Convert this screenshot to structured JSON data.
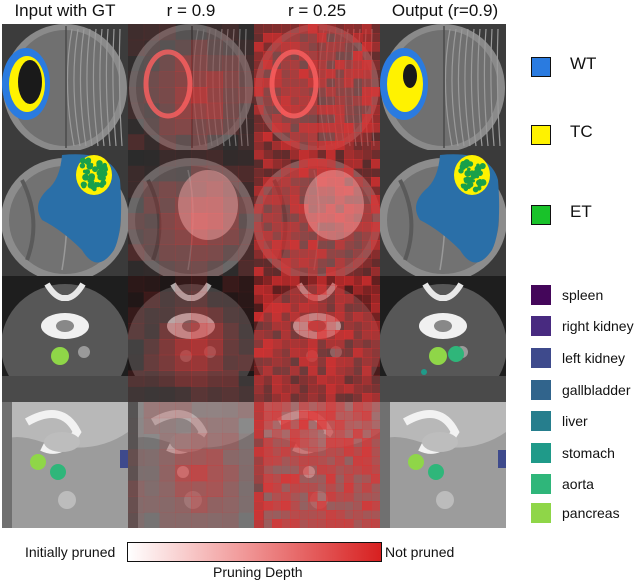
{
  "columns": [
    "Input with GT",
    "r = 0.9",
    "r = 0.25",
    "Output (r=0.9)"
  ],
  "tumor_legend": [
    {
      "label": "WT",
      "color": "#2a7be0"
    },
    {
      "label": "TC",
      "color": "#fff200"
    },
    {
      "label": "ET",
      "color": "#19c22a"
    }
  ],
  "organ_legend": [
    {
      "label": "spleen",
      "color": "#44065a"
    },
    {
      "label": "right kidney",
      "color": "#482a80"
    },
    {
      "label": "left kidney",
      "color": "#3e4a8c"
    },
    {
      "label": "gallbladder",
      "color": "#31648c"
    },
    {
      "label": "liver",
      "color": "#267e8d"
    },
    {
      "label": "stomach",
      "color": "#1f9a89"
    },
    {
      "label": "aorta",
      "color": "#2fb67a"
    },
    {
      "label": "pancreas",
      "color": "#8fd648"
    }
  ],
  "colorbar": {
    "left_label": "Initially pruned",
    "right_label": "Not pruned",
    "title": "Pruning Depth",
    "low_color": "#ffffff",
    "high_color": "#d72020"
  }
}
